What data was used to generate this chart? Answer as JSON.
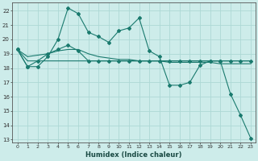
{
  "xlabel": "Humidex (Indice chaleur)",
  "background_color": "#cdecea",
  "grid_color": "#add8d5",
  "line_color": "#1a7a6e",
  "x": [
    0,
    1,
    2,
    3,
    4,
    5,
    6,
    7,
    8,
    9,
    10,
    11,
    12,
    13,
    14,
    15,
    16,
    17,
    18,
    19,
    20,
    21,
    22,
    23
  ],
  "series_main": [
    19.3,
    18.1,
    18.1,
    18.8,
    20.0,
    22.2,
    21.8,
    20.5,
    20.2,
    19.8,
    20.6,
    20.8,
    21.5,
    19.2,
    18.8,
    16.8,
    16.8,
    17.0,
    18.2,
    18.5,
    18.5,
    16.2,
    14.7,
    13.1
  ],
  "series_smooth": [
    19.3,
    18.8,
    18.9,
    19.0,
    19.2,
    19.3,
    19.3,
    19.0,
    18.8,
    18.7,
    18.6,
    18.6,
    18.5,
    18.5,
    18.5,
    18.4,
    18.4,
    18.4,
    18.4,
    18.4,
    18.3,
    18.3,
    18.3,
    18.3
  ],
  "series_flat": [
    19.3,
    18.5,
    18.5,
    18.5,
    18.5,
    18.5,
    18.5,
    18.5,
    18.5,
    18.5,
    18.5,
    18.5,
    18.5,
    18.5,
    18.5,
    18.5,
    18.5,
    18.5,
    18.5,
    18.5,
    18.5,
    18.5,
    18.5,
    18.5
  ],
  "series_diagonal": [
    19.3,
    18.1,
    18.5,
    19.0,
    19.3,
    19.6,
    19.2,
    18.5,
    18.5,
    18.5,
    18.5,
    18.5,
    18.5,
    18.5,
    18.5,
    18.5,
    18.5,
    18.5,
    18.5,
    18.5,
    18.5,
    18.5,
    18.5,
    18.5
  ],
  "ylim": [
    12.8,
    22.6
  ],
  "yticks": [
    13,
    14,
    15,
    16,
    17,
    18,
    19,
    20,
    21,
    22
  ],
  "xlim": [
    -0.5,
    23.5
  ],
  "xticks": [
    0,
    1,
    2,
    3,
    4,
    5,
    6,
    7,
    8,
    9,
    10,
    11,
    12,
    13,
    14,
    15,
    16,
    17,
    18,
    19,
    20,
    21,
    22,
    23
  ]
}
